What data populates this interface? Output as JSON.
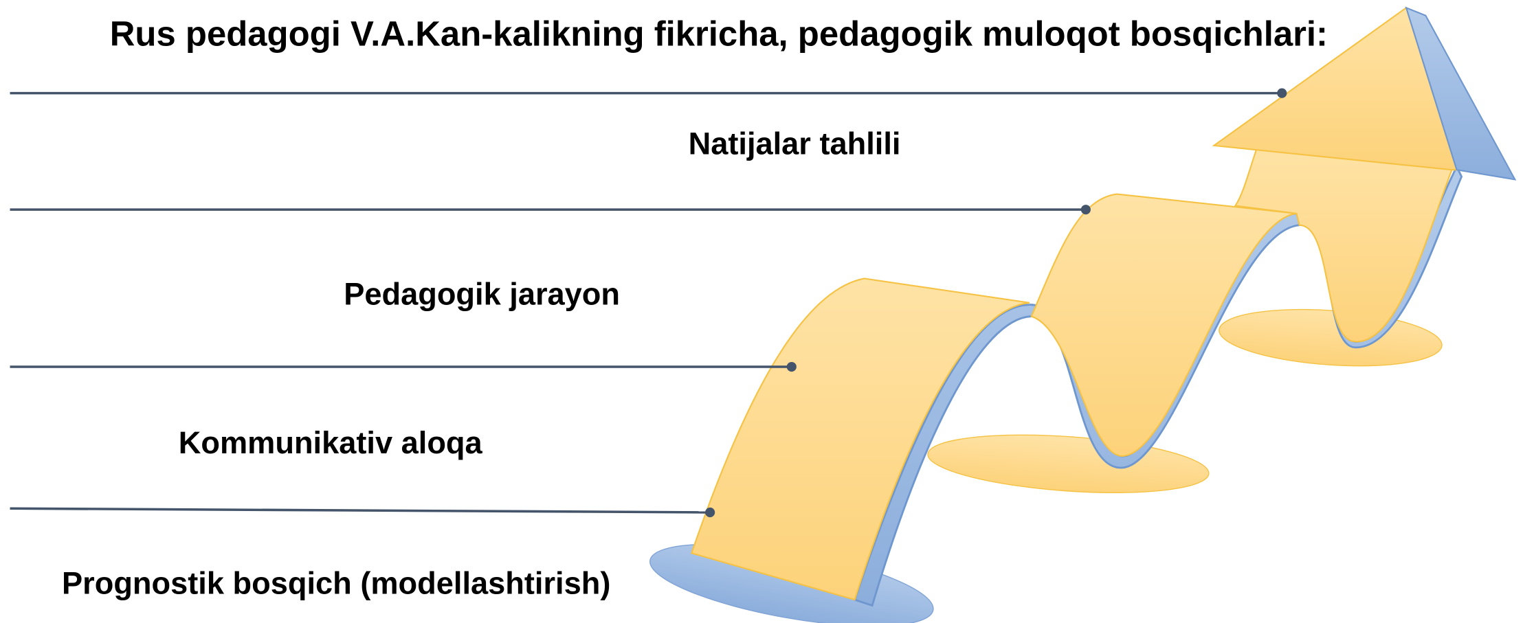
{
  "header": {
    "title": "Rus pedagogi V.A.Kan-kalikning fikricha, pedagogik muloqot bosqichlari:"
  },
  "stages": [
    "Natijalar tahlili",
    "Pedagogik jarayon",
    "Kommunikativ aloqa",
    "Prognostik bosqich (modellashtirish)"
  ]
}
